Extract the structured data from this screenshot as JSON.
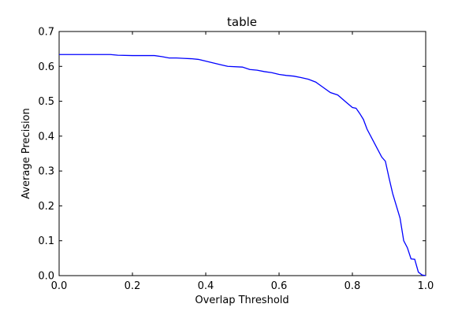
{
  "colors": {
    "series_line": "#0000ff",
    "axes": "#000000",
    "background": "#ffffff"
  },
  "chart_data": {
    "type": "line",
    "title": "table",
    "xlabel": "Overlap Threshold",
    "ylabel": "Average Precision",
    "xlim": [
      0.0,
      1.0
    ],
    "ylim": [
      0.0,
      0.7
    ],
    "grid": false,
    "x_ticks": [
      "0.0",
      "0.2",
      "0.4",
      "0.6",
      "0.8",
      "1.0"
    ],
    "y_ticks": [
      "0.0",
      "0.1",
      "0.2",
      "0.3",
      "0.4",
      "0.5",
      "0.6",
      "0.7"
    ],
    "series": [
      {
        "x": [
          0.0,
          0.05,
          0.1,
          0.14,
          0.16,
          0.2,
          0.26,
          0.28,
          0.3,
          0.32,
          0.34,
          0.36,
          0.38,
          0.4,
          0.42,
          0.44,
          0.46,
          0.5,
          0.52,
          0.54,
          0.56,
          0.58,
          0.6,
          0.62,
          0.64,
          0.66,
          0.68,
          0.7,
          0.72,
          0.74,
          0.76,
          0.78,
          0.8,
          0.81,
          0.82,
          0.83,
          0.84,
          0.86,
          0.88,
          0.89,
          0.9,
          0.91,
          0.92,
          0.93,
          0.94,
          0.95,
          0.96,
          0.97,
          0.98,
          0.99,
          1.0
        ],
        "y": [
          0.634,
          0.634,
          0.634,
          0.634,
          0.632,
          0.631,
          0.631,
          0.628,
          0.624,
          0.624,
          0.623,
          0.622,
          0.62,
          0.615,
          0.61,
          0.605,
          0.6,
          0.598,
          0.591,
          0.589,
          0.585,
          0.582,
          0.577,
          0.574,
          0.572,
          0.568,
          0.563,
          0.555,
          0.54,
          0.525,
          0.518,
          0.5,
          0.482,
          0.48,
          0.465,
          0.448,
          0.42,
          0.38,
          0.34,
          0.328,
          0.28,
          0.235,
          0.2,
          0.165,
          0.1,
          0.08,
          0.048,
          0.047,
          0.01,
          0.002,
          0.0
        ]
      }
    ]
  }
}
